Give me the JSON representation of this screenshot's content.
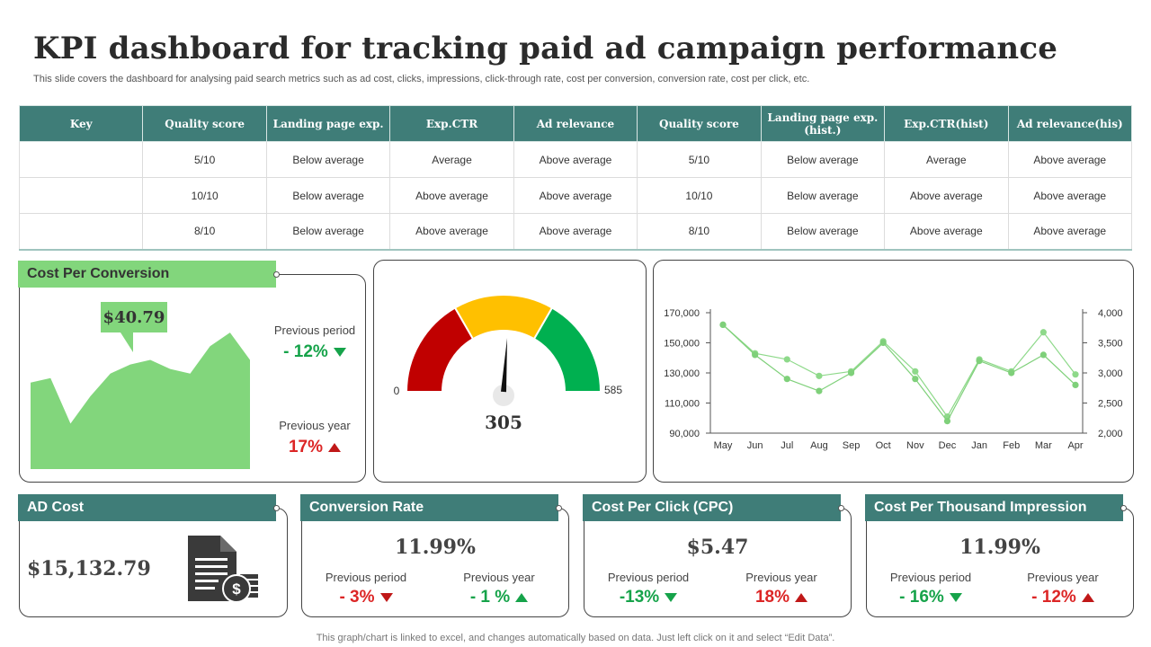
{
  "header": {
    "title": "KPI dashboard for tracking paid ad campaign performance",
    "subtitle": "This slide covers the dashboard for analysing paid search metrics such as ad cost, clicks, impressions, click-through rate, cost per conversion, conversion rate, cost per click, etc."
  },
  "table": {
    "headers": [
      "Key",
      "Quality score",
      "Landing page exp.",
      "Exp.CTR",
      "Ad relevance",
      "Quality score",
      "Landing page exp.(hist.)",
      "Exp.CTR(hist)",
      "Ad relevance(his)"
    ],
    "rows": [
      [
        "",
        "5/10",
        "Below average",
        "Average",
        "Above average",
        "5/10",
        "Below average",
        "Average",
        "Above average"
      ],
      [
        "",
        "10/10",
        "Below average",
        "Above average",
        "Above average",
        "10/10",
        "Below average",
        "Above average",
        "Above average"
      ],
      [
        "",
        "8/10",
        "Below average",
        "Above average",
        "Above average",
        "8/10",
        "Below average",
        "Above average",
        "Above average"
      ]
    ]
  },
  "cost_per_conversion": {
    "title": "Cost Per Conversion",
    "value": "$40.79",
    "previous_period_label": "Previous  period",
    "previous_period_change": "- 12%",
    "previous_year_label": "Previous  year",
    "previous_year_change": "17%"
  },
  "gauge": {
    "min_label": "0",
    "max_label": "585",
    "value_label": "305"
  },
  "ad_cost": {
    "title": "AD Cost",
    "value": "$15,132.79"
  },
  "conversion_rate": {
    "title": "Conversion Rate",
    "value": "11.99%",
    "previous_period_label": "Previous  period",
    "previous_period_change": "- 3%",
    "previous_year_label": "Previous  year",
    "previous_year_change": "- 1 %"
  },
  "cpc": {
    "title": "Cost Per Click (CPC)",
    "value": "$5.47",
    "previous_period_label": "Previous  period",
    "previous_period_change": "-13%",
    "previous_year_label": "Previous  year",
    "previous_year_change": "18%"
  },
  "cpm": {
    "title": "Cost Per Thousand Impression",
    "value": "11.99%",
    "previous_period_label": "Previous  period",
    "previous_period_change": "- 16%",
    "previous_year_label": "Previous  year",
    "previous_year_change": "- 12%"
  },
  "footer": "This graph/chart is linked to excel,  and changes automatically based on data. Just left click on it and select “Edit Data”.",
  "colors": {
    "teal": "#3f7d78",
    "green": "#82d67c",
    "up": "#16a34a",
    "down": "#dc2626",
    "gauge_red": "#c00000",
    "gauge_yellow": "#ffc000",
    "gauge_green": "#00b050"
  },
  "chart_data": [
    {
      "type": "area",
      "values": [
        39,
        40,
        30,
        36,
        41,
        43,
        44,
        42,
        41,
        47,
        50,
        44
      ],
      "ylim": [
        20,
        52
      ],
      "color": "#82d67c"
    },
    {
      "type": "gauge",
      "min": 0,
      "max": 585,
      "value": 305
    },
    {
      "type": "line",
      "categories": [
        "May",
        "Jun",
        "Jul",
        "Aug",
        "Sep",
        "Oct",
        "Nov",
        "Dec",
        "Jan",
        "Feb",
        "Mar",
        "Apr"
      ],
      "y_left": {
        "ylim": [
          90000,
          170000
        ],
        "ticks": [
          "90,000",
          "110,000",
          "130,000",
          "150,000",
          "170,000"
        ]
      },
      "y_right": {
        "ylim": [
          2000,
          4000
        ],
        "ticks": [
          "2,000",
          "2,500",
          "3,000",
          "3,500",
          "4,000"
        ]
      },
      "series": [
        {
          "axis": "left",
          "values": [
            162000,
            143000,
            139000,
            128000,
            131000,
            151000,
            131000,
            101000,
            139000,
            131000,
            157000,
            129000
          ],
          "color": "#8ed98a"
        },
        {
          "axis": "right",
          "values": [
            3800,
            3300,
            2900,
            2700,
            3000,
            3500,
            2900,
            2200,
            3200,
            3000,
            3300,
            2800
          ],
          "color": "#7fd07a"
        }
      ]
    }
  ]
}
